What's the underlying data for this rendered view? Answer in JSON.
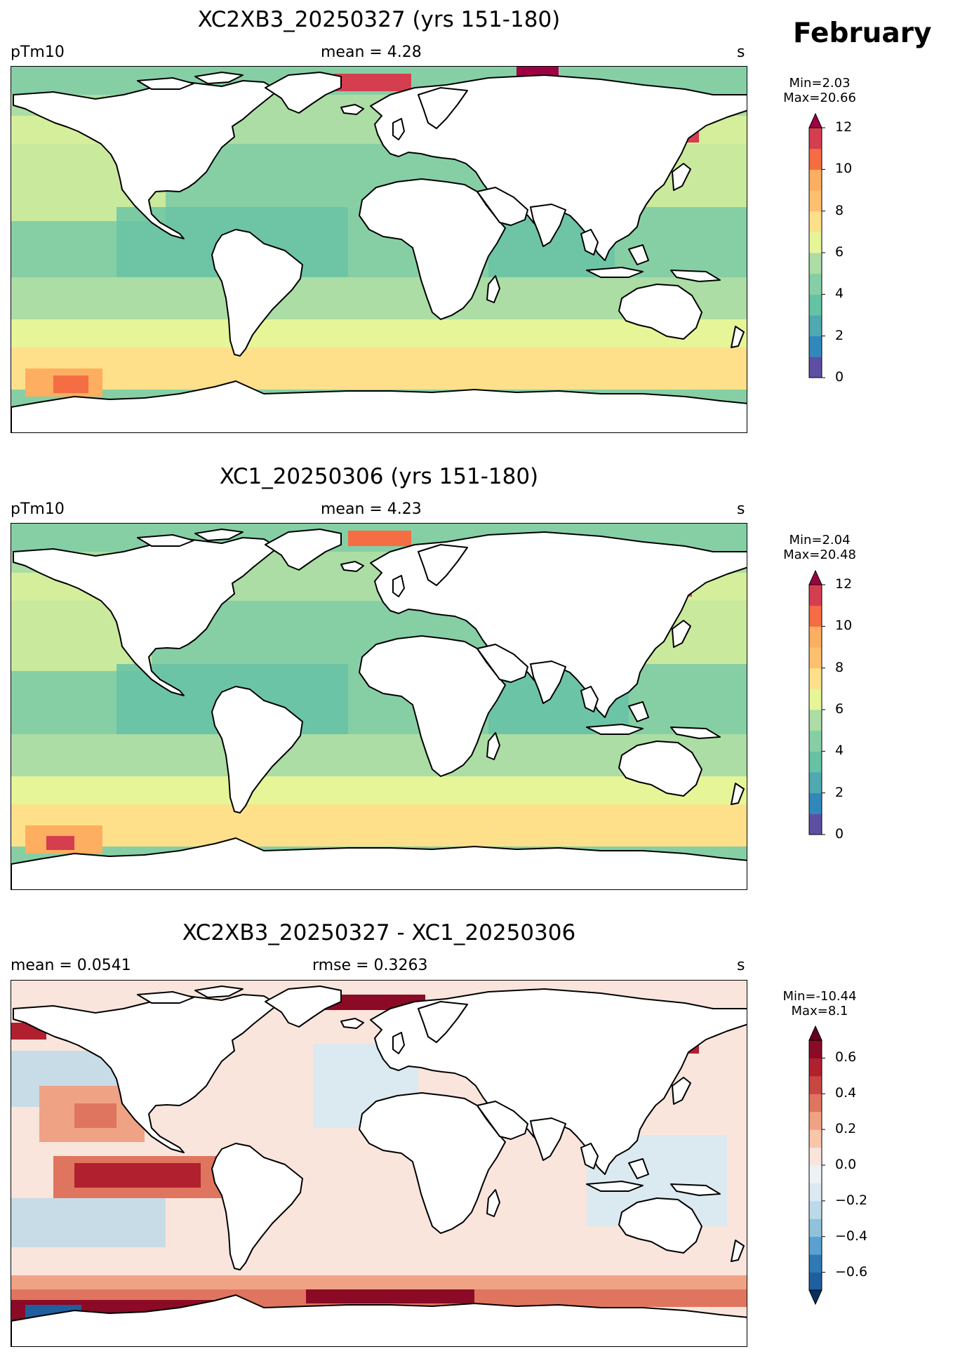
{
  "month": "February",
  "panels": [
    {
      "id": "top",
      "title": "XC2XB3_20250327 (yrs 151-180)",
      "left_label": "pTm10",
      "center_label": "mean = 4.28",
      "right_label": "s",
      "min_text": "Min=2.03",
      "max_text": "Max=20.66",
      "colorbar": {
        "levels": [
          0,
          1,
          2,
          3,
          4,
          5,
          6,
          7,
          8,
          9,
          10,
          11,
          12
        ],
        "tick_labels": [
          "0",
          "2",
          "4",
          "6",
          "8",
          "10",
          "12"
        ],
        "colors": [
          "#5e4fa2",
          "#3288bd",
          "#4fa9b0",
          "#66c2a5",
          "#86cfa5",
          "#abdda4",
          "#e6f598",
          "#fee08b",
          "#fdc06f",
          "#fdae61",
          "#f46d43",
          "#d53e4f"
        ],
        "extend_over": "#9e0142"
      }
    },
    {
      "id": "middle",
      "title": "XC1_20250306 (yrs 151-180)",
      "left_label": "pTm10",
      "center_label": "mean = 4.23",
      "right_label": "s",
      "min_text": "Min=2.04",
      "max_text": "Max=20.48",
      "colorbar": {
        "levels": [
          0,
          1,
          2,
          3,
          4,
          5,
          6,
          7,
          8,
          9,
          10,
          11,
          12
        ],
        "tick_labels": [
          "0",
          "2",
          "4",
          "6",
          "8",
          "10",
          "12"
        ],
        "colors": [
          "#5e4fa2",
          "#3288bd",
          "#4fa9b0",
          "#66c2a5",
          "#86cfa5",
          "#abdda4",
          "#e6f598",
          "#fee08b",
          "#fdc06f",
          "#fdae61",
          "#f46d43",
          "#d53e4f"
        ],
        "extend_over": "#9e0142"
      }
    },
    {
      "id": "bottom",
      "title": "XC2XB3_20250327 - XC1_20250306",
      "left_label": "mean = 0.0541",
      "center_label": "rmse = 0.3263",
      "right_label": "s",
      "min_text": "Min=-10.44",
      "max_text": "Max=8.1",
      "colorbar": {
        "levels": [
          -0.7,
          -0.6,
          -0.5,
          -0.4,
          -0.3,
          -0.2,
          -0.1,
          0.0,
          0.1,
          0.2,
          0.3,
          0.4,
          0.5,
          0.6,
          0.7
        ],
        "tick_labels": [
          "−0.6",
          "−0.4",
          "−0.2",
          "0.0",
          "0.2",
          "0.4",
          "0.6"
        ],
        "colors": [
          "#1f5f9e",
          "#2f79b5",
          "#5aa1cf",
          "#8fc2dd",
          "#bcd9ea",
          "#dbe9f1",
          "#eef2f5",
          "#f9e5dc",
          "#f9c5ab",
          "#f0a285",
          "#e0755f",
          "#c94741",
          "#b0202f",
          "#8b0a26"
        ],
        "extend_under": "#053061",
        "extend_over": "#67001f"
      }
    }
  ]
}
